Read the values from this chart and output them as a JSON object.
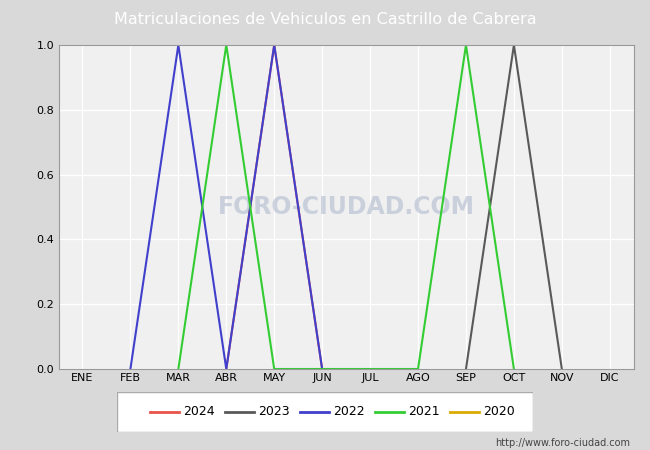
{
  "title": "Matriculaciones de Vehiculos en Castrillo de Cabrera",
  "title_bg_color": "#5b9bd5",
  "title_text_color": "#ffffff",
  "fig_bg_color": "#d9d9d9",
  "plot_bg_color": "#f0f0f0",
  "months": [
    "ENE",
    "FEB",
    "MAR",
    "ABR",
    "MAY",
    "JUN",
    "JUL",
    "AGO",
    "SEP",
    "OCT",
    "NOV",
    "DIC"
  ],
  "month_indices": [
    1,
    2,
    3,
    4,
    5,
    6,
    7,
    8,
    9,
    10,
    11,
    12
  ],
  "ylim": [
    0.0,
    1.0
  ],
  "series": {
    "2024": {
      "color": "#e8534a",
      "points": [
        [
          4,
          0.0
        ],
        [
          5,
          1.0
        ],
        [
          6,
          0.0
        ]
      ]
    },
    "2023": {
      "color": "#595959",
      "points": [
        [
          9,
          0.0
        ],
        [
          10,
          1.0
        ],
        [
          11,
          0.0
        ]
      ]
    },
    "2022": {
      "color": "#4040cc",
      "points": [
        [
          2,
          0.0
        ],
        [
          3,
          1.0
        ],
        [
          4,
          0.0
        ],
        [
          5,
          1.0
        ],
        [
          6,
          0.0
        ]
      ]
    },
    "2021": {
      "color": "#33cc33",
      "points": [
        [
          3,
          0.0
        ],
        [
          4,
          1.0
        ],
        [
          5,
          0.0
        ],
        [
          8,
          0.0
        ],
        [
          9,
          1.0
        ],
        [
          10,
          0.0
        ]
      ]
    },
    "2020": {
      "color": "#ddaa00",
      "points": []
    }
  },
  "legend_order": [
    "2024",
    "2023",
    "2022",
    "2021",
    "2020"
  ],
  "watermark_plot": "FORO-CIUDAD.COM",
  "watermark_url": "http://www.foro-ciudad.com"
}
